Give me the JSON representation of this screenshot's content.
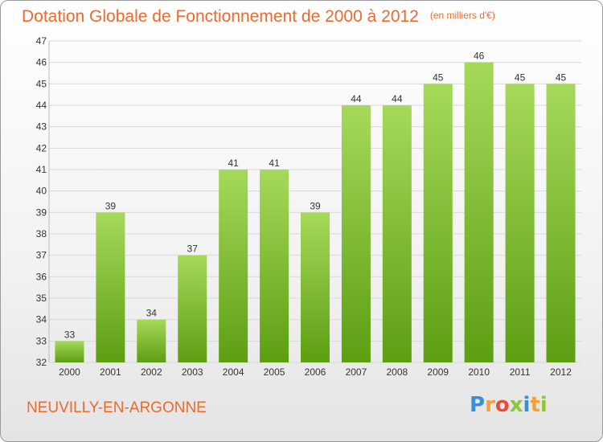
{
  "header": {
    "title": "Dotation Globale de Fonctionnement de 2000 à 2012",
    "unit_note": "(en milliers d'€)"
  },
  "footer": {
    "commune": "NEUVILLY-EN-ARGONNE",
    "logo_letters": [
      "P",
      "r",
      "o",
      "x",
      "i",
      "t",
      "i"
    ],
    "logo_colors": [
      "#3a8fd8",
      "#f2a23a",
      "#e54d3c",
      "#8fc43d",
      "#3a8fd8",
      "#f2a23a",
      "#8fc43d"
    ]
  },
  "colors": {
    "title": "#ed6a2e",
    "bar_top": "#a6d95a",
    "bar_bottom": "#5d9e12",
    "grid": "#d8d8d8",
    "axis_text": "#333333"
  },
  "chart_data": {
    "type": "bar",
    "categories": [
      "2000",
      "2001",
      "2002",
      "2003",
      "2004",
      "2005",
      "2006",
      "2007",
      "2008",
      "2009",
      "2010",
      "2011",
      "2012"
    ],
    "values": [
      33,
      39,
      34,
      37,
      41,
      41,
      39,
      44,
      44,
      45,
      46,
      45,
      45
    ],
    "ylim": [
      32,
      47
    ],
    "yticks": [
      32,
      33,
      34,
      35,
      36,
      37,
      38,
      39,
      40,
      41,
      42,
      43,
      44,
      45,
      46,
      47
    ],
    "grid": true,
    "data_labels": true,
    "title": "Dotation Globale de Fonctionnement de 2000 à 2012",
    "xlabel": "",
    "ylabel": ""
  }
}
